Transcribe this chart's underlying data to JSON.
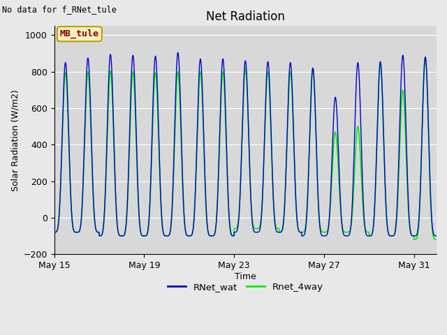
{
  "title": "Net Radiation",
  "xlabel": "Time",
  "ylabel": "Solar Radiation (W/m2)",
  "top_left_text": "No data for f_RNet_tule",
  "annotation_box": "MB_tule",
  "legend_entries": [
    "RNet_wat",
    "Rnet_4way"
  ],
  "legend_colors": [
    "#0000cd",
    "#00ee00"
  ],
  "line_colors": [
    "#0000cd",
    "#00ee00"
  ],
  "ylim": [
    -200,
    1050
  ],
  "yticks": [
    -200,
    0,
    200,
    400,
    600,
    800,
    1000
  ],
  "background_color": "#e8e8e8",
  "plot_bg_color": "#d8d8d8",
  "grid_color": "#ffffff",
  "date_start_day": 15,
  "x_tick_labels": [
    "May 15",
    "May 19",
    "May 23",
    "May 27",
    "May 31"
  ],
  "x_tick_days": [
    15,
    19,
    23,
    27,
    31
  ],
  "num_days": 17,
  "peak_blue": [
    850,
    875,
    895,
    890,
    885,
    905,
    870,
    870,
    860,
    855,
    850,
    820,
    660,
    850,
    855,
    890,
    880
  ],
  "peak_green": [
    795,
    800,
    805,
    800,
    795,
    800,
    800,
    800,
    820,
    800,
    800,
    815,
    470,
    500,
    840,
    700,
    880
  ],
  "trough_blue": [
    -80,
    -80,
    -100,
    -100,
    -100,
    -100,
    -100,
    -100,
    -80,
    -80,
    -80,
    -100,
    -100,
    -100,
    -100,
    -100,
    -100
  ],
  "trough_green": [
    -80,
    -80,
    -100,
    -100,
    -100,
    -100,
    -100,
    -100,
    -60,
    -60,
    -80,
    -80,
    -80,
    -80,
    -100,
    -100,
    -120
  ],
  "figsize": [
    6.4,
    4.8
  ],
  "dpi": 100
}
